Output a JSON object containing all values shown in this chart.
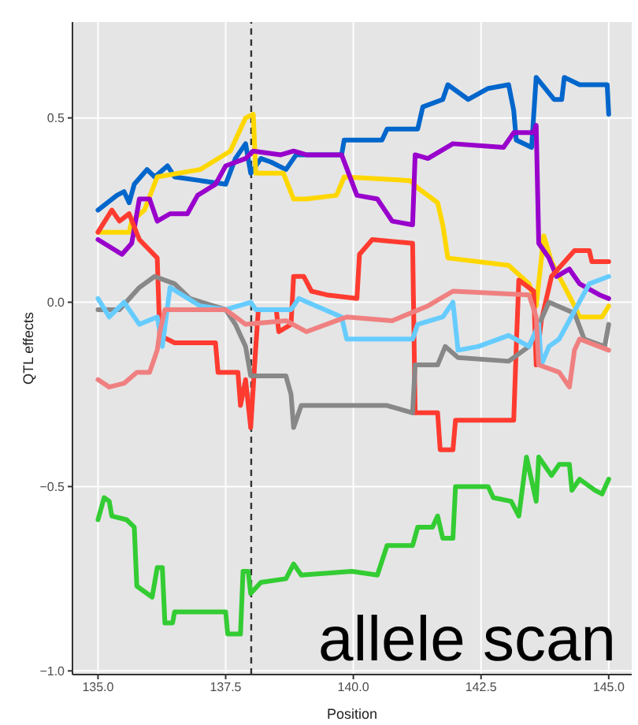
{
  "chart_data": {
    "type": "line",
    "xlabel": "Position",
    "ylabel": "QTL effects",
    "xlim": [
      134.5,
      145.45
    ],
    "ylim": [
      -1.01,
      0.76
    ],
    "xticks": [
      {
        "value": 135,
        "label": "135.0"
      },
      {
        "value": 137.5,
        "label": "137.5"
      },
      {
        "value": 140,
        "label": "140.0"
      },
      {
        "value": 142.5,
        "label": "142.5"
      },
      {
        "value": 145,
        "label": "145.0"
      }
    ],
    "yticks": [
      {
        "value": -1,
        "label": "−1.0"
      },
      {
        "value": -0.5,
        "label": "−0.5"
      },
      {
        "value": 0,
        "label": "0.0"
      },
      {
        "value": 0.5,
        "label": "0.5"
      }
    ],
    "grid": true,
    "legend": false,
    "marker": "none",
    "line_style": "solid",
    "ref_lines": [
      {
        "axis": "x",
        "value": 138.0,
        "label": null,
        "color": "#333333",
        "line_style": "dashed"
      }
    ],
    "annotations": [
      "allele scan"
    ],
    "series": [
      {
        "color": "#0066cc",
        "x": [
          135.0,
          135.37,
          135.51,
          135.61,
          135.71,
          135.96,
          136.11,
          136.36,
          136.5,
          137.0,
          137.5,
          137.69,
          137.89,
          137.99,
          138.19,
          138.39,
          138.68,
          138.88,
          139.77,
          139.82,
          140.56,
          140.66,
          141.26,
          141.36,
          141.75,
          141.85,
          142.25,
          142.64,
          143.04,
          143.14,
          143.19,
          143.49,
          143.58,
          143.93,
          144.08,
          144.13,
          144.43,
          144.97,
          145.0
        ],
        "values": [
          0.25,
          0.29,
          0.3,
          0.27,
          0.32,
          0.36,
          0.34,
          0.37,
          0.34,
          0.33,
          0.32,
          0.39,
          0.43,
          0.35,
          0.39,
          0.38,
          0.36,
          0.4,
          0.4,
          0.44,
          0.44,
          0.47,
          0.47,
          0.53,
          0.55,
          0.59,
          0.55,
          0.58,
          0.59,
          0.52,
          0.44,
          0.42,
          0.61,
          0.55,
          0.55,
          0.61,
          0.59,
          0.59,
          0.51
        ]
      },
      {
        "color": "#ffd700",
        "x": [
          135.0,
          135.61,
          135.66,
          135.91,
          136.16,
          137.0,
          137.59,
          137.89,
          138.04,
          138.09,
          138.63,
          138.83,
          139.08,
          139.67,
          139.82,
          141.11,
          141.26,
          141.65,
          141.75,
          141.85,
          143.04,
          143.44,
          143.58,
          143.73,
          143.88,
          144.03,
          144.33,
          144.43,
          144.87,
          145.0
        ],
        "values": [
          0.19,
          0.19,
          0.22,
          0.25,
          0.34,
          0.36,
          0.41,
          0.5,
          0.51,
          0.35,
          0.35,
          0.28,
          0.28,
          0.29,
          0.34,
          0.33,
          0.31,
          0.27,
          0.21,
          0.12,
          0.1,
          0.05,
          -0.01,
          0.18,
          0.11,
          0.07,
          -0.01,
          -0.04,
          -0.04,
          -0.01
        ]
      },
      {
        "color": "#9900cc",
        "x": [
          135.0,
          135.47,
          135.66,
          135.81,
          136.01,
          136.16,
          136.41,
          136.75,
          136.95,
          137.3,
          137.5,
          137.89,
          138.04,
          138.58,
          138.83,
          139.08,
          139.77,
          140.07,
          140.47,
          140.76,
          141.16,
          141.21,
          141.46,
          141.95,
          142.94,
          143.14,
          143.53,
          143.58,
          143.63,
          143.83,
          143.98,
          144.23,
          144.43,
          144.82,
          145.0
        ],
        "values": [
          0.17,
          0.13,
          0.16,
          0.28,
          0.28,
          0.22,
          0.24,
          0.24,
          0.29,
          0.32,
          0.37,
          0.39,
          0.41,
          0.4,
          0.41,
          0.4,
          0.4,
          0.29,
          0.28,
          0.22,
          0.21,
          0.4,
          0.39,
          0.43,
          0.42,
          0.46,
          0.46,
          0.48,
          0.16,
          0.12,
          0.07,
          0.09,
          0.05,
          0.02,
          0.01
        ]
      },
      {
        "color": "#ff3b30",
        "x": [
          135.0,
          135.27,
          135.42,
          135.61,
          135.81,
          136.16,
          136.21,
          136.5,
          137.3,
          137.35,
          137.74,
          137.79,
          137.89,
          137.99,
          138.09,
          138.14,
          138.49,
          138.54,
          138.78,
          138.83,
          139.03,
          139.18,
          139.48,
          140.07,
          140.12,
          140.37,
          141.16,
          141.21,
          141.65,
          141.7,
          141.95,
          142.0,
          143.14,
          143.19,
          143.24,
          143.53,
          143.58,
          143.68,
          143.88,
          144.33,
          144.62,
          144.67,
          145.0
        ],
        "values": [
          0.19,
          0.25,
          0.22,
          0.24,
          0.17,
          0.12,
          -0.09,
          -0.11,
          -0.11,
          -0.19,
          -0.19,
          -0.28,
          -0.21,
          -0.34,
          -0.12,
          -0.02,
          -0.02,
          -0.08,
          -0.06,
          0.07,
          0.07,
          0.03,
          0.02,
          0.01,
          0.13,
          0.17,
          0.16,
          -0.3,
          -0.3,
          -0.4,
          -0.4,
          -0.32,
          -0.32,
          -0.12,
          0.06,
          0.03,
          -0.17,
          -0.05,
          0.07,
          0.14,
          0.14,
          0.11,
          0.11
        ]
      },
      {
        "color": "#888888",
        "x": [
          135.0,
          135.42,
          135.81,
          136.11,
          136.5,
          136.8,
          137.5,
          137.69,
          137.89,
          137.99,
          138.68,
          138.78,
          138.83,
          138.98,
          140.66,
          141.16,
          141.21,
          141.65,
          141.8,
          142.05,
          143.04,
          143.44,
          143.83,
          144.33,
          144.52,
          144.92,
          145.0
        ],
        "values": [
          -0.02,
          -0.02,
          0.04,
          0.07,
          0.05,
          0.01,
          -0.02,
          -0.06,
          -0.12,
          -0.2,
          -0.2,
          -0.25,
          -0.34,
          -0.28,
          -0.28,
          -0.3,
          -0.17,
          -0.17,
          -0.12,
          -0.15,
          -0.16,
          -0.12,
          0.0,
          -0.03,
          -0.1,
          -0.12,
          -0.06
        ]
      },
      {
        "color": "#66ccff",
        "x": [
          135.0,
          135.22,
          135.51,
          135.81,
          136.16,
          136.26,
          136.41,
          137.0,
          137.5,
          137.99,
          138.09,
          138.78,
          138.93,
          139.77,
          139.87,
          141.16,
          141.26,
          141.75,
          141.95,
          142.05,
          142.45,
          143.04,
          143.44,
          143.63,
          143.68,
          143.83,
          144.03,
          144.62,
          145.0
        ],
        "values": [
          0.01,
          -0.04,
          0.0,
          -0.06,
          -0.04,
          -0.12,
          0.04,
          -0.01,
          -0.02,
          0.0,
          -0.02,
          -0.02,
          0.01,
          -0.04,
          -0.1,
          -0.1,
          -0.06,
          -0.04,
          0.0,
          -0.13,
          -0.12,
          -0.09,
          -0.12,
          -0.06,
          -0.17,
          -0.12,
          -0.1,
          0.05,
          0.07
        ]
      },
      {
        "color": "#f08080",
        "x": [
          135.0,
          135.22,
          135.51,
          135.76,
          136.01,
          136.16,
          136.21,
          136.31,
          137.5,
          137.89,
          138.68,
          139.08,
          139.67,
          139.87,
          140.76,
          141.46,
          141.95,
          143.44,
          143.58,
          143.63,
          144.03,
          144.23,
          144.33,
          144.43,
          145.0
        ],
        "values": [
          -0.21,
          -0.23,
          -0.22,
          -0.19,
          -0.19,
          -0.13,
          -0.08,
          -0.02,
          -0.02,
          -0.06,
          -0.05,
          -0.08,
          -0.05,
          -0.04,
          -0.05,
          -0.01,
          0.03,
          0.02,
          -0.04,
          -0.17,
          -0.19,
          -0.23,
          -0.13,
          -0.1,
          -0.13
        ]
      },
      {
        "color": "#33cc33",
        "x": [
          135.0,
          135.12,
          135.22,
          135.27,
          135.56,
          135.71,
          135.76,
          136.06,
          136.16,
          136.26,
          136.31,
          136.46,
          136.5,
          137.5,
          137.54,
          137.79,
          137.84,
          137.94,
          137.99,
          138.19,
          138.68,
          138.83,
          138.98,
          139.97,
          140.47,
          140.66,
          141.16,
          141.26,
          141.55,
          141.65,
          141.75,
          141.95,
          142.0,
          142.64,
          142.74,
          143.09,
          143.24,
          143.39,
          143.58,
          143.63,
          143.88,
          144.03,
          144.23,
          144.28,
          144.43,
          144.73,
          144.87,
          145.0
        ],
        "values": [
          -0.59,
          -0.53,
          -0.54,
          -0.58,
          -0.59,
          -0.61,
          -0.77,
          -0.8,
          -0.72,
          -0.72,
          -0.87,
          -0.87,
          -0.84,
          -0.84,
          -0.9,
          -0.9,
          -0.73,
          -0.73,
          -0.79,
          -0.76,
          -0.75,
          -0.71,
          -0.74,
          -0.73,
          -0.74,
          -0.66,
          -0.66,
          -0.61,
          -0.61,
          -0.58,
          -0.64,
          -0.64,
          -0.5,
          -0.5,
          -0.53,
          -0.54,
          -0.58,
          -0.42,
          -0.54,
          -0.42,
          -0.47,
          -0.44,
          -0.44,
          -0.51,
          -0.48,
          -0.51,
          -0.52,
          -0.48
        ]
      }
    ]
  }
}
